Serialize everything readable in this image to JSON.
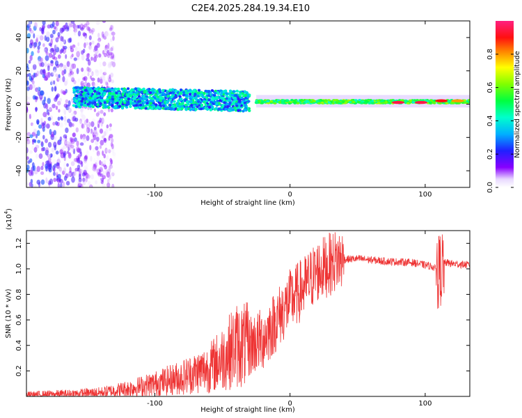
{
  "chart_data": [
    {
      "type": "heatmap",
      "title": "C2E4.2025.284.19.34.E10",
      "xlabel": "Height of straight line (km)",
      "ylabel": "Frequency (Hz)",
      "xlim": [
        -195,
        133
      ],
      "ylim": [
        -50,
        50
      ],
      "xticks": [
        -100,
        0,
        100
      ],
      "yticks": [
        -40,
        -20,
        0,
        20,
        40
      ],
      "description_regions": [
        {
          "name": "scattered-noise",
          "x": [
            -195,
            -130
          ],
          "freq_range": [
            -50,
            50
          ],
          "amplitude": [
            0.0,
            0.3
          ]
        },
        {
          "name": "wide-band",
          "x": [
            -160,
            -30
          ],
          "freq_center": 3,
          "half_width": 6,
          "amplitude": [
            0.2,
            0.5
          ]
        },
        {
          "name": "narrow-line",
          "x": [
            -25,
            133
          ],
          "freq_center": 1.5,
          "half_width": 2,
          "amplitude": [
            0.4,
            1.0
          ]
        }
      ],
      "hot_spots": [
        {
          "x": 80,
          "freq": 1,
          "amplitude": 0.95
        },
        {
          "x": 97,
          "freq": 1,
          "amplitude": 0.95
        },
        {
          "x": 112,
          "freq": 2,
          "amplitude": 0.9
        },
        {
          "x": 124,
          "freq": 2,
          "amplitude": 0.8
        }
      ],
      "colorbar": {
        "label": "Normalized spectral amplitude",
        "range": [
          0,
          1
        ],
        "ticks": [
          "0.0",
          "0.2",
          "0.4",
          "0.6",
          "0.8"
        ]
      }
    },
    {
      "type": "line",
      "xlabel": "Height of straight line (km)",
      "ylabel": "SNR (10 * v/v)",
      "multiplier_label": "(x10",
      "multiplier_exp": "4",
      "xlim": [
        -195,
        133
      ],
      "ylim": [
        0,
        1.3
      ],
      "xticks": [
        -100,
        0,
        100
      ],
      "yticks": [
        "0.2",
        "0.4",
        "0.6",
        "0.8",
        "1.0",
        "1.2"
      ],
      "series": [
        {
          "name": "SNR",
          "color": "#ee3333",
          "x": [
            -195,
            -180,
            -160,
            -140,
            -120,
            -100,
            -80,
            -60,
            -50,
            -40,
            -30,
            -20,
            -10,
            0,
            10,
            20,
            35,
            50,
            70,
            90,
            105,
            110,
            115,
            120,
            133
          ],
          "y": [
            0.01,
            0.015,
            0.02,
            0.03,
            0.06,
            0.1,
            0.15,
            0.22,
            0.3,
            0.4,
            0.4,
            0.45,
            0.6,
            0.75,
            0.85,
            0.98,
            1.07,
            1.08,
            1.06,
            1.05,
            1.02,
            0.98,
            1.05,
            1.04,
            1.03
          ]
        }
      ]
    }
  ]
}
